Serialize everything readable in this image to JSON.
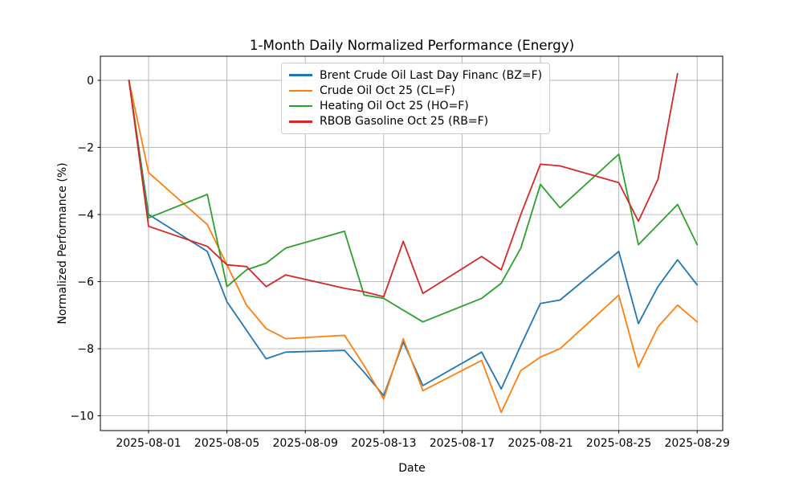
{
  "figure": {
    "title": "1-Month Daily Normalized Performance (Energy)",
    "xlabel": "Date",
    "ylabel": "Normalized Performance (%)"
  },
  "chart_data": {
    "type": "line",
    "title": "1-Month Daily Normalized Performance (Energy)",
    "xlabel": "Date",
    "ylabel": "Normalized Performance (%)",
    "grid": true,
    "legend_position": "upper center",
    "ylim": [
      -10.4,
      0.7
    ],
    "x_dates": [
      "2025-07-31",
      "2025-08-01",
      "2025-08-04",
      "2025-08-05",
      "2025-08-06",
      "2025-08-07",
      "2025-08-08",
      "2025-08-11",
      "2025-08-12",
      "2025-08-13",
      "2025-08-14",
      "2025-08-15",
      "2025-08-18",
      "2025-08-19",
      "2025-08-20",
      "2025-08-21",
      "2025-08-22",
      "2025-08-25",
      "2025-08-26",
      "2025-08-27",
      "2025-08-28",
      "2025-08-29"
    ],
    "x_tick_dates": [
      "2025-08-01",
      "2025-08-05",
      "2025-08-09",
      "2025-08-13",
      "2025-08-17",
      "2025-08-21",
      "2025-08-25",
      "2025-08-29"
    ],
    "x_tick_labels": [
      "2025-08-01",
      "2025-08-05",
      "2025-08-09",
      "2025-08-13",
      "2025-08-17",
      "2025-08-21",
      "2025-08-25",
      "2025-08-29"
    ],
    "y_ticks": [
      0,
      -2,
      -4,
      -6,
      -8,
      -10
    ],
    "y_tick_labels": [
      "0",
      "−2",
      "−4",
      "−6",
      "−8",
      "−10"
    ],
    "series": [
      {
        "name": "Brent Crude Oil Last Day Financ (BZ=F)",
        "color": "#1f77b4",
        "values": [
          0,
          -4.0,
          -5.1,
          -6.6,
          -7.45,
          -8.3,
          -8.1,
          -8.05,
          -8.7,
          -9.4,
          -7.8,
          -9.1,
          -8.1,
          -9.2,
          -7.9,
          -6.65,
          -6.55,
          -5.1,
          -7.25,
          -6.15,
          -5.35,
          -6.1
        ]
      },
      {
        "name": "Crude Oil Oct 25 (CL=F)",
        "color": "#ff7f0e",
        "values": [
          0,
          -2.75,
          -4.3,
          -5.5,
          -6.7,
          -7.4,
          -7.7,
          -7.6,
          -8.5,
          -9.5,
          -7.7,
          -9.25,
          -8.35,
          -9.9,
          -8.65,
          -8.25,
          -8.0,
          -6.4,
          -8.55,
          -7.35,
          -6.7,
          -7.2
        ]
      },
      {
        "name": "Heating Oil Oct 25 (HO=F)",
        "color": "#2ca02c",
        "values": [
          0,
          -4.1,
          -3.4,
          -6.15,
          -5.65,
          -5.45,
          -5.0,
          -4.5,
          -6.4,
          -6.5,
          -6.85,
          -7.2,
          -6.5,
          -6.05,
          -5.0,
          -3.1,
          -3.8,
          -2.2,
          -4.9,
          -4.3,
          -3.7,
          -4.9
        ]
      },
      {
        "name": "RBOB Gasoline Oct 25 (RB=F)",
        "color": "#d62728",
        "values": [
          0,
          -4.35,
          -4.95,
          -5.5,
          -5.55,
          -6.15,
          -5.8,
          -6.2,
          -6.3,
          -6.45,
          -4.8,
          -6.35,
          -5.25,
          -5.65,
          -4.0,
          -2.5,
          -2.55,
          -3.05,
          -4.2,
          -2.95,
          0.2,
          null
        ]
      }
    ]
  },
  "colors": {
    "background": "#ffffff",
    "grid": "#b0b0b0",
    "spine": "#000000",
    "text": "#000000",
    "legend_border": "#cccccc"
  }
}
